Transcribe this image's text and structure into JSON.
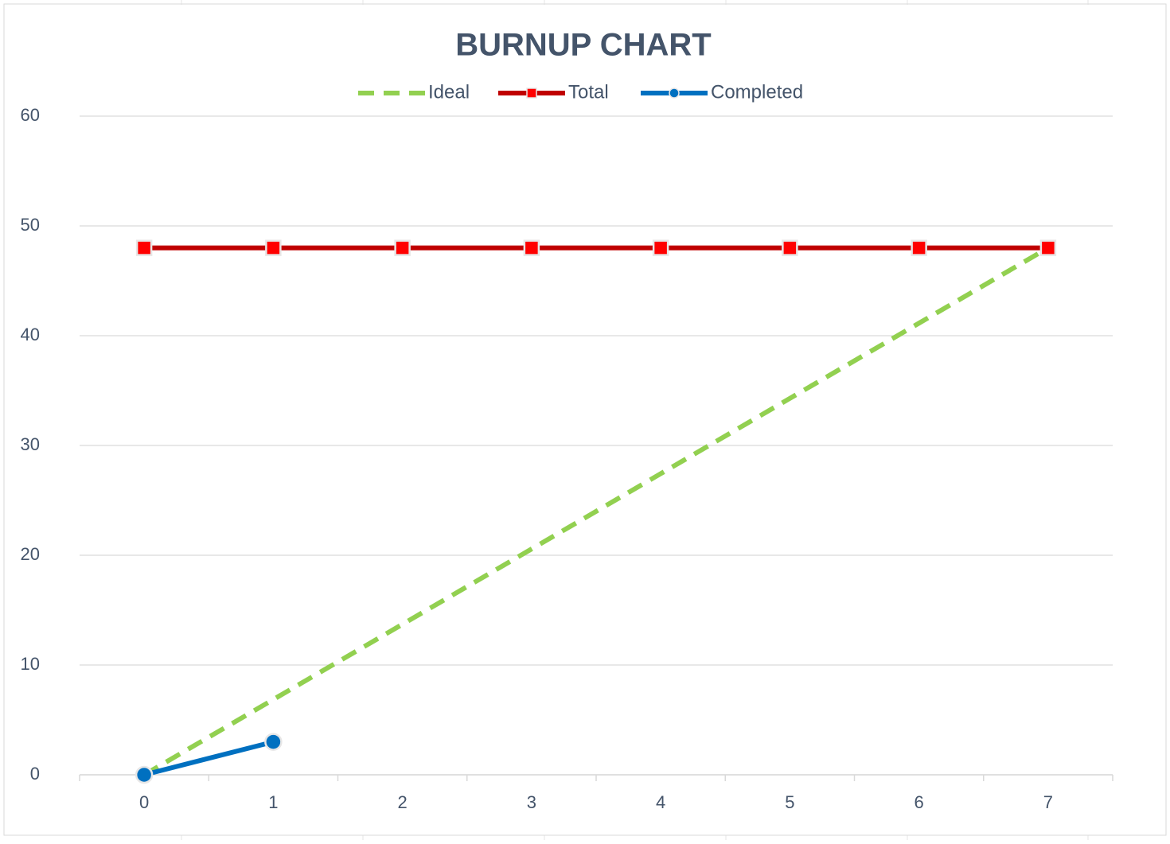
{
  "chart_data": {
    "type": "line",
    "title": "BURNUP CHART",
    "categories": [
      "0",
      "1",
      "2",
      "3",
      "4",
      "5",
      "6",
      "7"
    ],
    "series": [
      {
        "name": "Ideal",
        "color": "#92d050",
        "dashed": true,
        "marker": "none",
        "values": [
          0,
          6.86,
          13.71,
          20.57,
          27.43,
          34.29,
          41.14,
          48
        ]
      },
      {
        "name": "Total",
        "color": "#c00000",
        "marker_color": "#ff0000",
        "dashed": false,
        "marker": "square",
        "values": [
          48,
          48,
          48,
          48,
          48,
          48,
          48,
          48
        ]
      },
      {
        "name": "Completed",
        "color": "#0070c0",
        "marker_color": "#0070c0",
        "dashed": false,
        "marker": "circle",
        "values": [
          0,
          3,
          null,
          null,
          null,
          null,
          null,
          null
        ]
      }
    ],
    "ylim": [
      0,
      60
    ],
    "yticks": [
      0,
      10,
      20,
      30,
      40,
      50,
      60
    ],
    "grid": true,
    "legend": "top"
  }
}
